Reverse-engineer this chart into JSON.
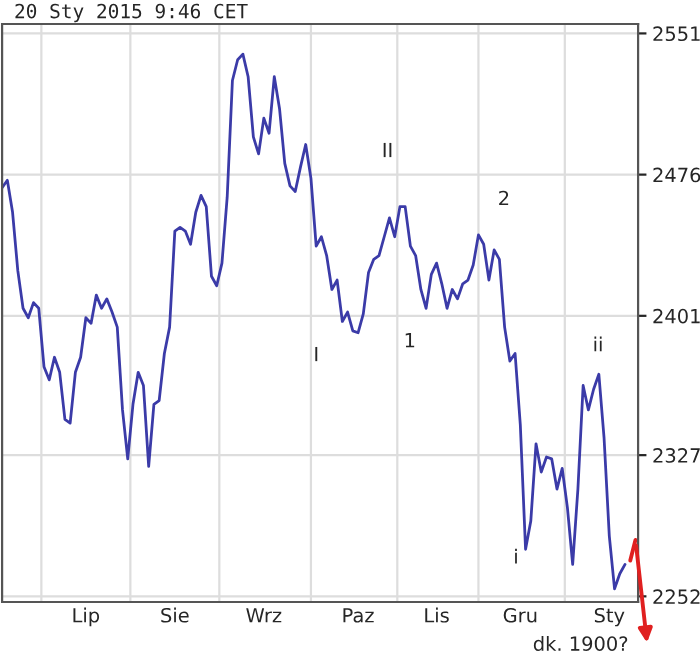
{
  "chart_data": {
    "type": "line",
    "title": "20 Sty 2015 9:46 CET",
    "categories": [
      null,
      null,
      null,
      null,
      null,
      null,
      null,
      null,
      null,
      null,
      null,
      null,
      null,
      null,
      null,
      null,
      "Lip",
      null,
      null,
      null,
      null,
      null,
      null,
      null,
      null,
      null,
      null,
      null,
      null,
      null,
      null,
      null,
      null,
      "Sie",
      null,
      null,
      null,
      null,
      null,
      null,
      null,
      null,
      null,
      null,
      null,
      null,
      null,
      null,
      null,
      null,
      "Wrz",
      null,
      null,
      null,
      null,
      null,
      null,
      null,
      null,
      null,
      null,
      null,
      null,
      null,
      null,
      null,
      null,
      null,
      "Paz",
      null,
      null,
      null,
      null,
      null,
      null,
      null,
      null,
      null,
      null,
      null,
      null,
      null,
      null,
      "Lis",
      null,
      null,
      null,
      null,
      null,
      null,
      null,
      null,
      null,
      null,
      null,
      null,
      null,
      null,
      null,
      "Gru",
      null,
      null,
      null,
      null,
      null,
      null,
      null,
      null,
      null,
      null,
      null,
      null,
      null,
      null,
      null,
      null,
      "Sty",
      null,
      null,
      null,
      null,
      null
    ],
    "ylim": [
      2249,
      2556
    ],
    "yticks": [
      2252,
      2327,
      2401,
      2476,
      2551
    ],
    "grid": true,
    "legend": false,
    "marker": "none",
    "line_style": "solid",
    "series": [
      {
        "color": "#3b3ba8",
        "values": [
          2469,
          2473,
          2456,
          2425,
          2405,
          2400,
          2408,
          2405,
          2374,
          2367,
          2379,
          2371,
          2346,
          2344,
          2371,
          2379,
          2400,
          2397,
          2412,
          2405,
          2410,
          2403,
          2395,
          2351,
          2325,
          2354,
          2371,
          2364,
          2321,
          2354,
          2356,
          2381,
          2395,
          2446,
          2448,
          2446,
          2439,
          2456,
          2465,
          2459,
          2422,
          2417,
          2429,
          2464,
          2526,
          2537,
          2540,
          2528,
          2496,
          2487,
          2506,
          2498,
          2528,
          2511,
          2482,
          2470,
          2467,
          2480,
          2492,
          2474,
          2438,
          2443,
          2433,
          2415,
          2420,
          2398,
          2403,
          2393,
          2392,
          2402,
          2424,
          2431,
          2433,
          2443,
          2453,
          2443,
          2459,
          2459,
          2438,
          2433,
          2415,
          2405,
          2423,
          2429,
          2418,
          2405,
          2415,
          2410,
          2418,
          2420,
          2428,
          2444,
          2439,
          2420,
          2436,
          2431,
          2395,
          2377,
          2381,
          2343,
          2277,
          2292,
          2333,
          2318,
          2326,
          2325,
          2309,
          2320,
          2299,
          2269,
          2309,
          2364,
          2351,
          2362,
          2370,
          2336,
          2284,
          2256,
          2264,
          2269,
          null,
          null
        ]
      },
      {
        "color": "#e02020",
        "values": [
          null,
          null,
          null,
          null,
          null,
          null,
          null,
          null,
          null,
          null,
          null,
          null,
          null,
          null,
          null,
          null,
          null,
          null,
          null,
          null,
          null,
          null,
          null,
          null,
          null,
          null,
          null,
          null,
          null,
          null,
          null,
          null,
          null,
          null,
          null,
          null,
          null,
          null,
          null,
          null,
          null,
          null,
          null,
          null,
          null,
          null,
          null,
          null,
          null,
          null,
          null,
          null,
          null,
          null,
          null,
          null,
          null,
          null,
          null,
          null,
          null,
          null,
          null,
          null,
          null,
          null,
          null,
          null,
          null,
          null,
          null,
          null,
          null,
          null,
          null,
          null,
          null,
          null,
          null,
          null,
          null,
          null,
          null,
          null,
          null,
          null,
          null,
          null,
          null,
          null,
          null,
          null,
          null,
          null,
          null,
          null,
          null,
          null,
          null,
          null,
          null,
          null,
          null,
          null,
          null,
          null,
          null,
          null,
          null,
          null,
          null,
          null,
          null,
          null,
          null,
          null,
          null,
          null,
          null,
          null,
          2271,
          2282
        ]
      }
    ],
    "annotations": [
      "I",
      "II",
      "1",
      "2",
      "i",
      "ii",
      "dk. 1900?"
    ]
  }
}
